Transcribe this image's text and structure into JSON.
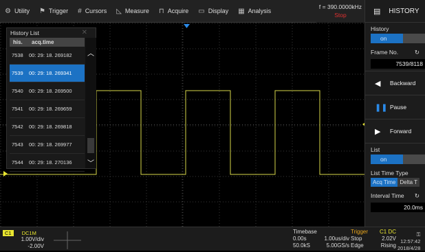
{
  "menubar": {
    "items": [
      {
        "icon": "gear-icon",
        "glyph": "⚙",
        "label": "Utility"
      },
      {
        "icon": "flag-icon",
        "glyph": "⚑",
        "label": "Trigger"
      },
      {
        "icon": "cursors-icon",
        "glyph": "#",
        "label": "Cursors"
      },
      {
        "icon": "measure-icon",
        "glyph": "◺",
        "label": "Measure"
      },
      {
        "icon": "acquire-icon",
        "glyph": "⊓",
        "label": "Acquire"
      },
      {
        "icon": "display-icon",
        "glyph": "▭",
        "label": "Display"
      },
      {
        "icon": "analysis-icon",
        "glyph": "▦",
        "label": "Analysis"
      }
    ],
    "frequency": "f = 390.0000kHz",
    "run_state": "Stop"
  },
  "history_list": {
    "title": "History List",
    "col_his": "his.",
    "col_acq": "acq.time",
    "rows": [
      {
        "his": "7538",
        "time": "00: 29: 18. 269182",
        "selected": false
      },
      {
        "his": "7539",
        "time": "00: 29: 18. 269341",
        "selected": true
      },
      {
        "his": "7540",
        "time": "00: 29: 18. 269500",
        "selected": false
      },
      {
        "his": "7541",
        "time": "00: 29: 18. 269659",
        "selected": false
      },
      {
        "his": "7542",
        "time": "00: 29: 18. 269818",
        "selected": false
      },
      {
        "his": "7543",
        "time": "00: 29: 18. 269977",
        "selected": false
      },
      {
        "his": "7544",
        "time": "00: 29: 18. 270136",
        "selected": false
      }
    ]
  },
  "right_panel": {
    "title": "HISTORY",
    "history_label": "History",
    "history_state": "on",
    "frame_label": "Frame No.",
    "frame_value": "7539/8118",
    "backward": "Backward",
    "pause": "Pause",
    "forward": "Forward",
    "list_label": "List",
    "list_state": "on",
    "list_time_type_label": "List Time Type",
    "acq_time": "Acq Time",
    "delta_t": "Delta T",
    "interval_label": "Interval Time",
    "interval_value": "20.0ms"
  },
  "bottom": {
    "ch1_label": "C1",
    "ch1_coupling": "DC1M",
    "ch1_scale": "1.00V/div",
    "ch1_offset": "-2.00V",
    "timebase_label": "Timebase",
    "tb_delay": "0.00s",
    "tb_scale": "1.00us/div",
    "tb_points": "50.0kS",
    "tb_rate": "5.00GS/s",
    "trigger_label": "Trigger",
    "trig_source": "C1 DC",
    "trig_state": "Stop",
    "trig_level": "2.02V",
    "trig_type": "Edge",
    "trig_slope": "Rising",
    "time": "12:57:42",
    "date": "2018/4/28"
  },
  "colors": {
    "trace": "#d8d84a",
    "accent": "#1c72c4",
    "stop": "#e03030",
    "trigger": "#e9a61c"
  }
}
